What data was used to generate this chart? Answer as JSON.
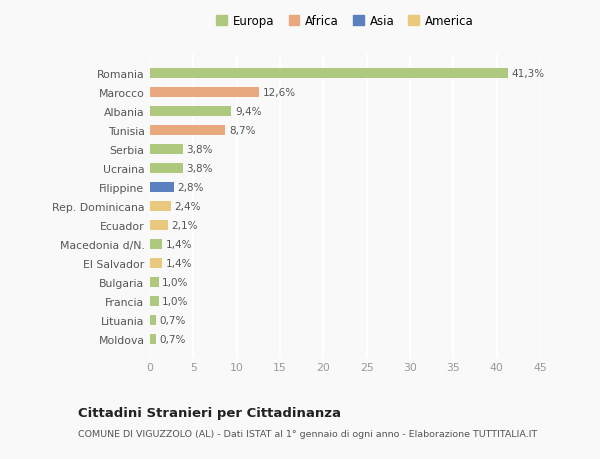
{
  "countries": [
    "Romania",
    "Marocco",
    "Albania",
    "Tunisia",
    "Serbia",
    "Ucraina",
    "Filippine",
    "Rep. Dominicana",
    "Ecuador",
    "Macedonia d/N.",
    "El Salvador",
    "Bulgaria",
    "Francia",
    "Lituania",
    "Moldova"
  ],
  "values": [
    41.3,
    12.6,
    9.4,
    8.7,
    3.8,
    3.8,
    2.8,
    2.4,
    2.1,
    1.4,
    1.4,
    1.0,
    1.0,
    0.7,
    0.7
  ],
  "labels": [
    "41,3%",
    "12,6%",
    "9,4%",
    "8,7%",
    "3,8%",
    "3,8%",
    "2,8%",
    "2,4%",
    "2,1%",
    "1,4%",
    "1,4%",
    "1,0%",
    "1,0%",
    "0,7%",
    "0,7%"
  ],
  "colors": [
    "#aec97e",
    "#e8a97e",
    "#aec97e",
    "#e8a97e",
    "#aec97e",
    "#aec97e",
    "#5b80bf",
    "#e8c97e",
    "#e8c97e",
    "#aec97e",
    "#e8c97e",
    "#aec97e",
    "#aec97e",
    "#aec97e",
    "#aec97e"
  ],
  "legend_labels": [
    "Europa",
    "Africa",
    "Asia",
    "America"
  ],
  "legend_colors": [
    "#aec97e",
    "#e8a97e",
    "#5b80bf",
    "#e8c97e"
  ],
  "xlim": [
    0,
    45
  ],
  "xticks": [
    0,
    5,
    10,
    15,
    20,
    25,
    30,
    35,
    40,
    45
  ],
  "title": "Cittadini Stranieri per Cittadinanza",
  "subtitle": "COMUNE DI VIGUZZOLO (AL) - Dati ISTAT al 1° gennaio di ogni anno - Elaborazione TUTTITALIA.IT",
  "background_color": "#f9f9f9",
  "grid_color": "#ffffff",
  "bar_height": 0.55
}
